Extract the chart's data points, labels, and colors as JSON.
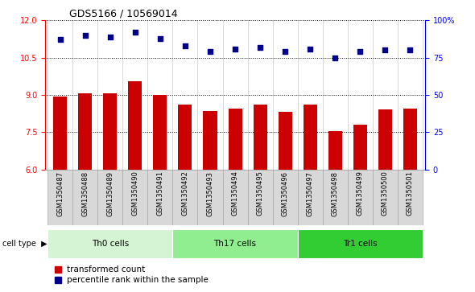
{
  "title": "GDS5166 / 10569014",
  "samples": [
    "GSM1350487",
    "GSM1350488",
    "GSM1350489",
    "GSM1350490",
    "GSM1350491",
    "GSM1350492",
    "GSM1350493",
    "GSM1350494",
    "GSM1350495",
    "GSM1350496",
    "GSM1350497",
    "GSM1350498",
    "GSM1350499",
    "GSM1350500",
    "GSM1350501"
  ],
  "transformed_count": [
    8.95,
    9.05,
    9.05,
    9.55,
    9.0,
    8.62,
    8.35,
    8.45,
    8.6,
    8.32,
    8.62,
    7.55,
    7.8,
    8.4,
    8.45
  ],
  "percentile_rank": [
    87,
    90,
    89,
    92,
    88,
    83,
    79,
    81,
    82,
    79,
    81,
    75,
    79,
    80,
    80
  ],
  "bar_color": "#cc0000",
  "dot_color": "#00008b",
  "ylim_left": [
    6,
    12
  ],
  "ylim_right": [
    0,
    100
  ],
  "yticks_left": [
    6,
    7.5,
    9,
    10.5,
    12
  ],
  "yticks_right": [
    0,
    25,
    50,
    75,
    100
  ],
  "cell_groups": [
    {
      "label": "Th0 cells",
      "start": 0,
      "end": 5
    },
    {
      "label": "Th17 cells",
      "start": 5,
      "end": 10
    },
    {
      "label": "Tr1 cells",
      "start": 10,
      "end": 15
    }
  ],
  "group_colors": [
    "#d4f4d4",
    "#90ee90",
    "#32cd32"
  ],
  "legend_bar_label": "transformed count",
  "legend_dot_label": "percentile rank within the sample",
  "cell_type_label": "cell type",
  "tick_bg_color": "#d8d8d8",
  "right_ytick_labels": [
    "0",
    "25",
    "50",
    "75",
    "100%"
  ]
}
